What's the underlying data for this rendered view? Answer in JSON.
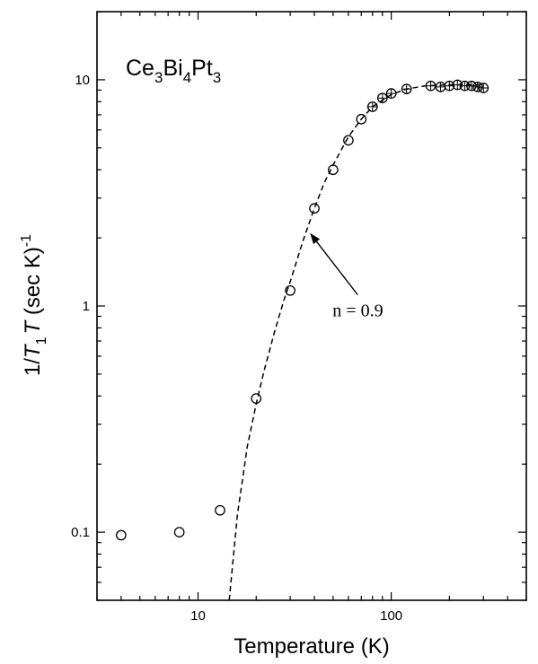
{
  "chart_data": {
    "type": "scatter",
    "xscale": "log",
    "yscale": "log",
    "xlim": [
      3,
      500
    ],
    "ylim": [
      0.05,
      20
    ],
    "xlabel": "Temperature (K)",
    "ylabel": {
      "prefix": "1/",
      "t": "T",
      "sub1": "1",
      "t2": "T",
      "rest": " (sec K)",
      "sup": "-1"
    },
    "x_ticks": [
      {
        "value": 10,
        "label": "10"
      },
      {
        "value": 100,
        "label": "100"
      }
    ],
    "y_ticks": [
      {
        "value": 0.1,
        "label": "0.1"
      },
      {
        "value": 1,
        "label": "1"
      },
      {
        "value": 10,
        "label": "10"
      }
    ],
    "grid": false,
    "compound": {
      "p1": "Ce",
      "s1": "3",
      "p2": "Bi",
      "s2": "4",
      "p3": "Pt",
      "s3": "3"
    },
    "series": [
      {
        "marker": "open-circle",
        "x": [
          4,
          8,
          13,
          20,
          30,
          40,
          50,
          60,
          70,
          80,
          90,
          100,
          120,
          160,
          180,
          200,
          220,
          240,
          260,
          280,
          300
        ],
        "y": [
          0.097,
          0.1,
          0.125,
          0.39,
          1.17,
          2.7,
          4.0,
          5.4,
          6.7,
          7.6,
          8.3,
          8.7,
          9.1,
          9.4,
          9.3,
          9.4,
          9.5,
          9.4,
          9.4,
          9.3,
          9.2
        ]
      }
    ],
    "fit_curve": {
      "style": "dashed",
      "x": [
        14.5,
        16,
        18,
        20,
        22,
        25,
        28,
        30,
        35,
        40,
        45,
        50,
        60,
        70,
        80,
        100,
        120,
        150,
        200,
        250,
        300
      ],
      "y": [
        0.05,
        0.12,
        0.24,
        0.37,
        0.52,
        0.78,
        1.08,
        1.28,
        1.95,
        2.7,
        3.5,
        4.2,
        5.6,
        6.7,
        7.6,
        8.6,
        9.1,
        9.4,
        9.5,
        9.5,
        9.5
      ]
    },
    "annotation": {
      "text": "n = 0.9",
      "arrow_to": {
        "x": 38,
        "y": 2.1
      },
      "text_at": {
        "x": 70,
        "y": 0.95
      }
    }
  }
}
